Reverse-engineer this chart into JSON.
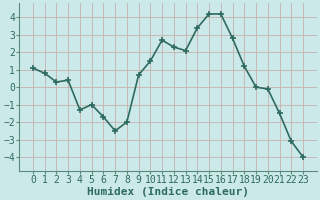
{
  "x": [
    0,
    1,
    2,
    3,
    4,
    5,
    6,
    7,
    8,
    9,
    10,
    11,
    12,
    13,
    14,
    15,
    16,
    17,
    18,
    19,
    20,
    21,
    22,
    23
  ],
  "y": [
    1.1,
    0.8,
    0.3,
    0.4,
    -1.3,
    -1.0,
    -1.7,
    -2.5,
    -2.0,
    0.7,
    1.5,
    2.7,
    2.3,
    2.1,
    3.4,
    4.2,
    4.2,
    2.8,
    1.2,
    0.0,
    -0.1,
    -1.5,
    -3.1,
    -4.0
  ],
  "line_color": "#2e6b5e",
  "marker": "+",
  "marker_size": 5,
  "line_width": 1.2,
  "bg_color": "#cce9e9",
  "grid_color": "#c8b0b0",
  "xlabel": "Humidex (Indice chaleur)",
  "xlabel_fontsize": 8,
  "xlabel_bold": true,
  "ylim": [
    -4.8,
    4.8
  ],
  "yticks": [
    -4,
    -3,
    -2,
    -1,
    0,
    1,
    2,
    3,
    4
  ],
  "xticks": [
    0,
    1,
    2,
    3,
    4,
    5,
    6,
    7,
    8,
    9,
    10,
    11,
    12,
    13,
    14,
    15,
    16,
    17,
    18,
    19,
    20,
    21,
    22,
    23
  ],
  "tick_fontsize": 7,
  "spine_color": "#5a8a7a"
}
